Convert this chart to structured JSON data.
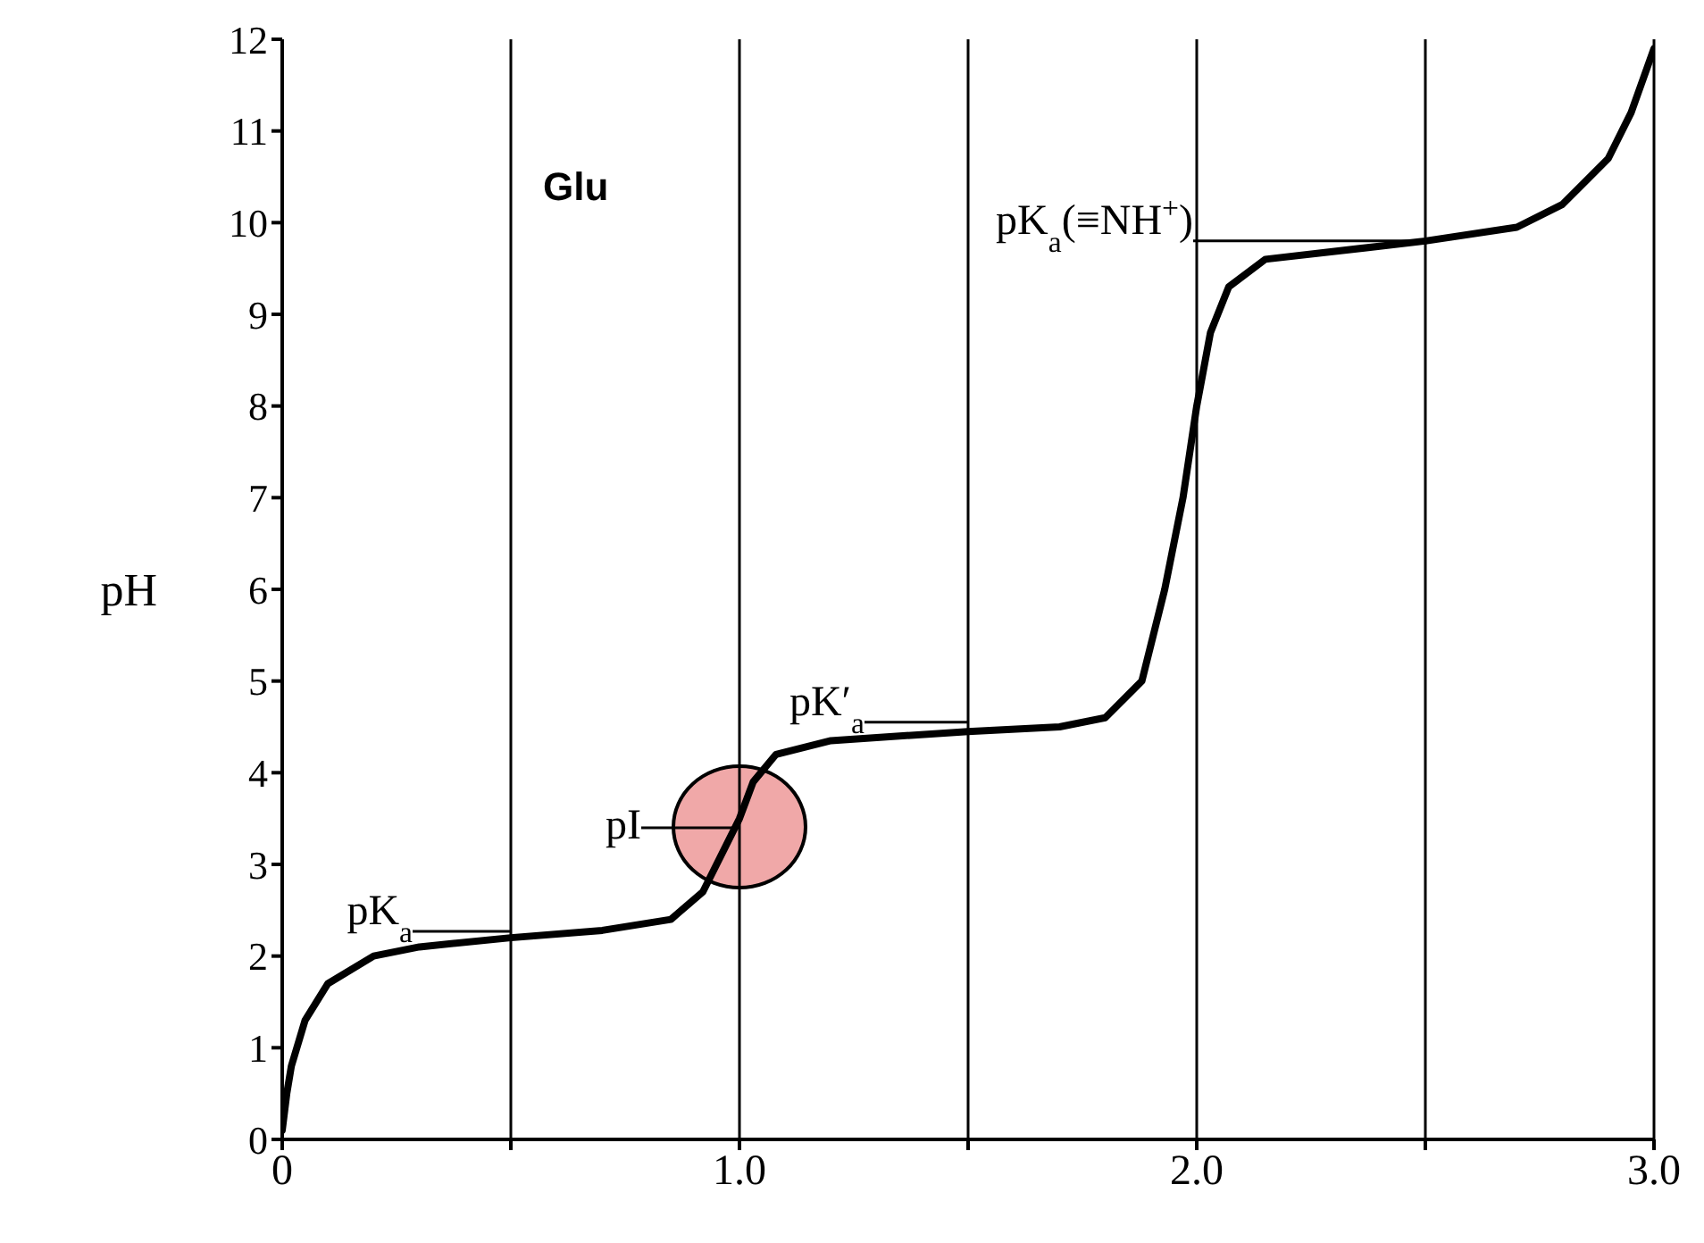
{
  "chart_data": {
    "type": "line",
    "title": "Glu",
    "ylabel": "pH",
    "color": "#000000",
    "x": [
      0,
      0.01,
      0.02,
      0.05,
      0.1,
      0.2,
      0.3,
      0.5,
      0.7,
      0.85,
      0.92,
      0.97,
      1.0,
      1.03,
      1.08,
      1.2,
      1.5,
      1.7,
      1.8,
      1.88,
      1.93,
      1.97,
      2.0,
      2.03,
      2.07,
      2.15,
      2.5,
      2.7,
      2.8,
      2.9,
      2.95,
      3.0
    ],
    "values": [
      0.1,
      0.5,
      0.8,
      1.3,
      1.7,
      2.0,
      2.1,
      2.2,
      2.28,
      2.4,
      2.7,
      3.2,
      3.5,
      3.9,
      4.2,
      4.35,
      4.45,
      4.5,
      4.6,
      5.0,
      6.0,
      7.0,
      8.0,
      8.8,
      9.3,
      9.6,
      9.8,
      9.95,
      10.2,
      10.7,
      11.2,
      11.9
    ],
    "xlim": [
      0,
      3
    ],
    "xticks": [
      0,
      {
        "value": 0.5,
        "label": null
      },
      {
        "value": 1,
        "label": "1.0"
      },
      {
        "value": 1.5,
        "label": null
      },
      {
        "value": 2,
        "label": "2.0"
      },
      {
        "value": 2.5,
        "label": null
      },
      {
        "value": 3,
        "label": "3.0"
      }
    ],
    "ylim": [
      0,
      12
    ],
    "yticks": [
      0,
      1,
      2,
      3,
      4,
      5,
      6,
      7,
      8,
      9,
      10,
      11,
      12
    ],
    "grid": "x",
    "annotations": [
      {
        "text": "pK$_{a}$",
        "x": 0.5,
        "y": 2.27
      },
      {
        "text": "pK′$_{a}$",
        "x": 1.5,
        "y": 4.55
      },
      {
        "text": "pI",
        "x": 1.0,
        "y": 3.4
      },
      {
        "text": "pK$_{a}$(≡NH$^{+}$)",
        "x": 2.5,
        "y": 9.8
      }
    ]
  }
}
